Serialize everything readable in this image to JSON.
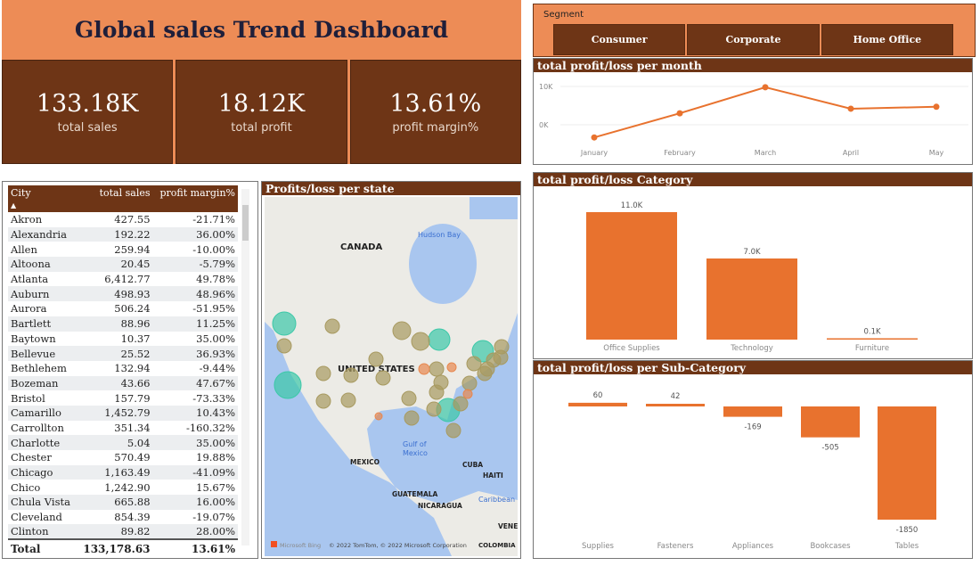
{
  "title": "Global sales Trend Dashboard",
  "kpis": [
    {
      "value": "133.18K",
      "label": "total sales"
    },
    {
      "value": "18.12K",
      "label": "total profit"
    },
    {
      "value": "13.61%",
      "label": "profit margin%"
    }
  ],
  "segment": {
    "label": "Segment",
    "options": [
      "Consumer",
      "Corporate",
      "Home Office"
    ]
  },
  "table": {
    "columns": [
      "City",
      "total sales",
      "profit margin%"
    ],
    "sort": "City ascending",
    "rows": [
      [
        "Akron",
        "427.55",
        "-21.71%"
      ],
      [
        "Alexandria",
        "192.22",
        "36.00%"
      ],
      [
        "Allen",
        "259.94",
        "-10.00%"
      ],
      [
        "Altoona",
        "20.45",
        "-5.79%"
      ],
      [
        "Atlanta",
        "6,412.77",
        "49.78%"
      ],
      [
        "Auburn",
        "498.93",
        "48.96%"
      ],
      [
        "Aurora",
        "506.24",
        "-51.95%"
      ],
      [
        "Bartlett",
        "88.96",
        "11.25%"
      ],
      [
        "Baytown",
        "10.37",
        "35.00%"
      ],
      [
        "Bellevue",
        "25.52",
        "36.93%"
      ],
      [
        "Bethlehem",
        "132.94",
        "-9.44%"
      ],
      [
        "Bozeman",
        "43.66",
        "47.67%"
      ],
      [
        "Bristol",
        "157.79",
        "-73.33%"
      ],
      [
        "Camarillo",
        "1,452.79",
        "10.43%"
      ],
      [
        "Carrollton",
        "351.34",
        "-160.32%"
      ],
      [
        "Charlotte",
        "5.04",
        "35.00%"
      ],
      [
        "Chester",
        "570.49",
        "19.88%"
      ],
      [
        "Chicago",
        "1,163.49",
        "-41.09%"
      ],
      [
        "Chico",
        "1,242.90",
        "15.67%"
      ],
      [
        "Chula Vista",
        "665.88",
        "16.00%"
      ],
      [
        "Cleveland",
        "854.39",
        "-19.07%"
      ],
      [
        "Clinton",
        "89.82",
        "28.00%"
      ]
    ],
    "total": [
      "Total",
      "133,178.63",
      "13.61%"
    ]
  },
  "map": {
    "title": "Profits/loss per state",
    "labels": {
      "canada": "CANADA",
      "hudson": "Hudson Bay",
      "us": "UNITED STATES",
      "gulf1": "Gulf of",
      "gulf2": "Mexico",
      "mexico": "MEXICO",
      "cuba": "CUBA",
      "haiti": "HAITI",
      "guatemala": "GUATEMALA",
      "nicaragua": "NICARAGUA",
      "caribbean": "Caribbean S",
      "venez": "VENEZ",
      "colombia": "COLOMBIA"
    },
    "attribution": "© 2022 TomTom, © 2022 Microsoft Corporation",
    "brand": "Microsoft Bing",
    "colors": {
      "high": "#3CC8A8",
      "mid": "#A89A60",
      "low": "#E8874E"
    }
  },
  "colors": {
    "accent": "#E8722E",
    "header": "#6E3516",
    "title_bg": "#ED8C56"
  },
  "chart_data": [
    {
      "type": "line",
      "title": "total profit/loss per month",
      "categories": [
        "January",
        "February",
        "March",
        "April",
        "May"
      ],
      "values": [
        -3300,
        3000,
        9800,
        4200,
        4700
      ],
      "yticks": [
        "0K",
        "10K"
      ],
      "ylim": [
        -5000,
        11000
      ],
      "grid": true
    },
    {
      "type": "bar",
      "title": "total profit/loss Category",
      "categories": [
        "Office Supplies",
        "Technology",
        "Furniture"
      ],
      "values": [
        11000,
        7000,
        100
      ],
      "data_labels": [
        "11.0K",
        "7.0K",
        "0.1K"
      ]
    },
    {
      "type": "bar",
      "title": "total profit/loss per Sub-Category",
      "categories": [
        "Supplies",
        "Fasteners",
        "Appliances",
        "Bookcases",
        "Tables"
      ],
      "values": [
        60,
        42,
        -169,
        -505,
        -1850
      ],
      "data_labels": [
        "60",
        "42",
        "-169",
        "-505",
        "-1850"
      ]
    }
  ]
}
